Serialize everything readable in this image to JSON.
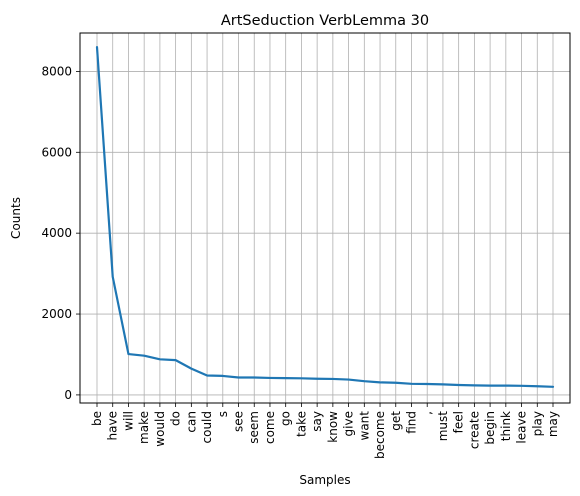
{
  "chart_data": {
    "type": "line",
    "title": "ArtSeduction VerbLemma 30",
    "xlabel": "Samples",
    "ylabel": "Counts",
    "categories": [
      "be",
      "have",
      "will",
      "make",
      "would",
      "do",
      "can",
      "could",
      "s",
      "see",
      "seem",
      "come",
      "go",
      "take",
      "say",
      "know",
      "give",
      "want",
      "become",
      "get",
      "find",
      ",",
      "must",
      "feel",
      "create",
      "begin",
      "think",
      "leave",
      "play",
      "may"
    ],
    "series": [
      {
        "values": [
          8600,
          2920,
          1010,
          970,
          880,
          860,
          650,
          480,
          470,
          430,
          430,
          420,
          415,
          410,
          400,
          395,
          380,
          340,
          310,
          300,
          275,
          270,
          260,
          245,
          235,
          230,
          230,
          225,
          215,
          200
        ]
      }
    ],
    "ylim": [
      -200,
      8950
    ],
    "yticks": [
      0,
      2000,
      4000,
      6000,
      8000
    ],
    "grid": true,
    "line_color": "#1f77b4",
    "grid_color": "#b0b0b0"
  }
}
